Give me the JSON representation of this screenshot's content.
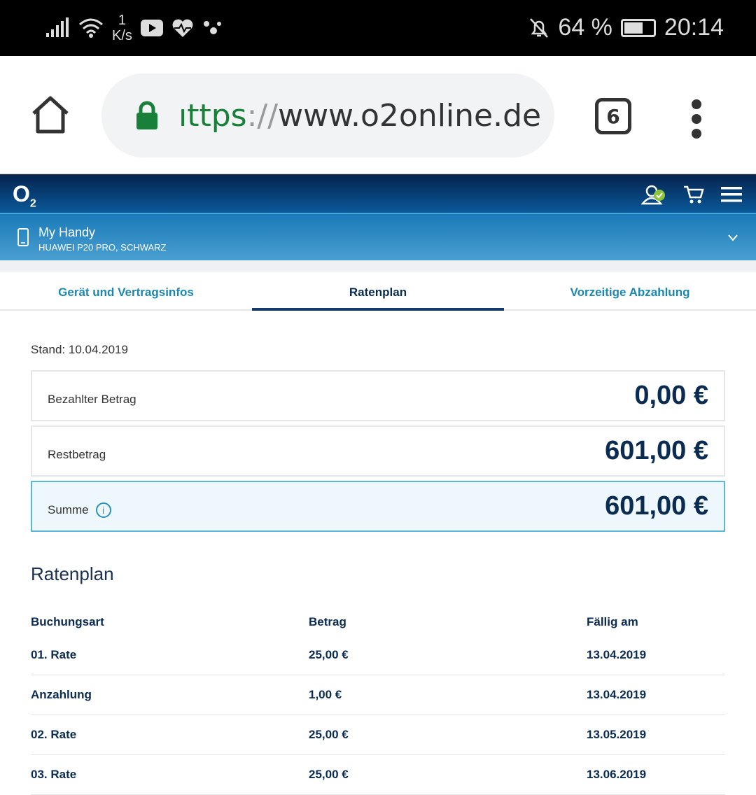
{
  "status": {
    "speed_value": "1",
    "speed_unit": "K/s",
    "battery": "64 %",
    "battery_level": 0.64,
    "time": "20:14"
  },
  "browser": {
    "url_scheme": "ıttps",
    "url_sep": "://",
    "url_host": "www.o2online.de",
    "tab_count": "6"
  },
  "header": {
    "logo": "O",
    "logo_sub": "2",
    "colors": {
      "dark": "#06224e",
      "accent": "#1a87b0"
    }
  },
  "device": {
    "title": "My Handy",
    "subtitle": "HUAWEI P20 PRO, SCHWARZ"
  },
  "tabs": [
    {
      "label": "Gerät und Vertragsinfos"
    },
    {
      "label": "Ratenplan"
    },
    {
      "label": "Vorzeitige Abzahlung"
    }
  ],
  "stand": "Stand: 10.04.2019",
  "summary": [
    {
      "label": "Bezahlter Betrag",
      "value": "0,00 €"
    },
    {
      "label": "Restbetrag",
      "value": "601,00 €"
    },
    {
      "label": "Summe",
      "value": "601,00 €"
    }
  ],
  "plan": {
    "title": "Ratenplan",
    "headers": [
      "Buchungsart",
      "Betrag",
      "Fällig am"
    ],
    "rows": [
      [
        "01. Rate",
        "25,00 €",
        "13.04.2019"
      ],
      [
        "Anzahlung",
        "1,00 €",
        "13.04.2019"
      ],
      [
        "02. Rate",
        "25,00 €",
        "13.05.2019"
      ],
      [
        "03. Rate",
        "25,00 €",
        "13.06.2019"
      ]
    ]
  }
}
